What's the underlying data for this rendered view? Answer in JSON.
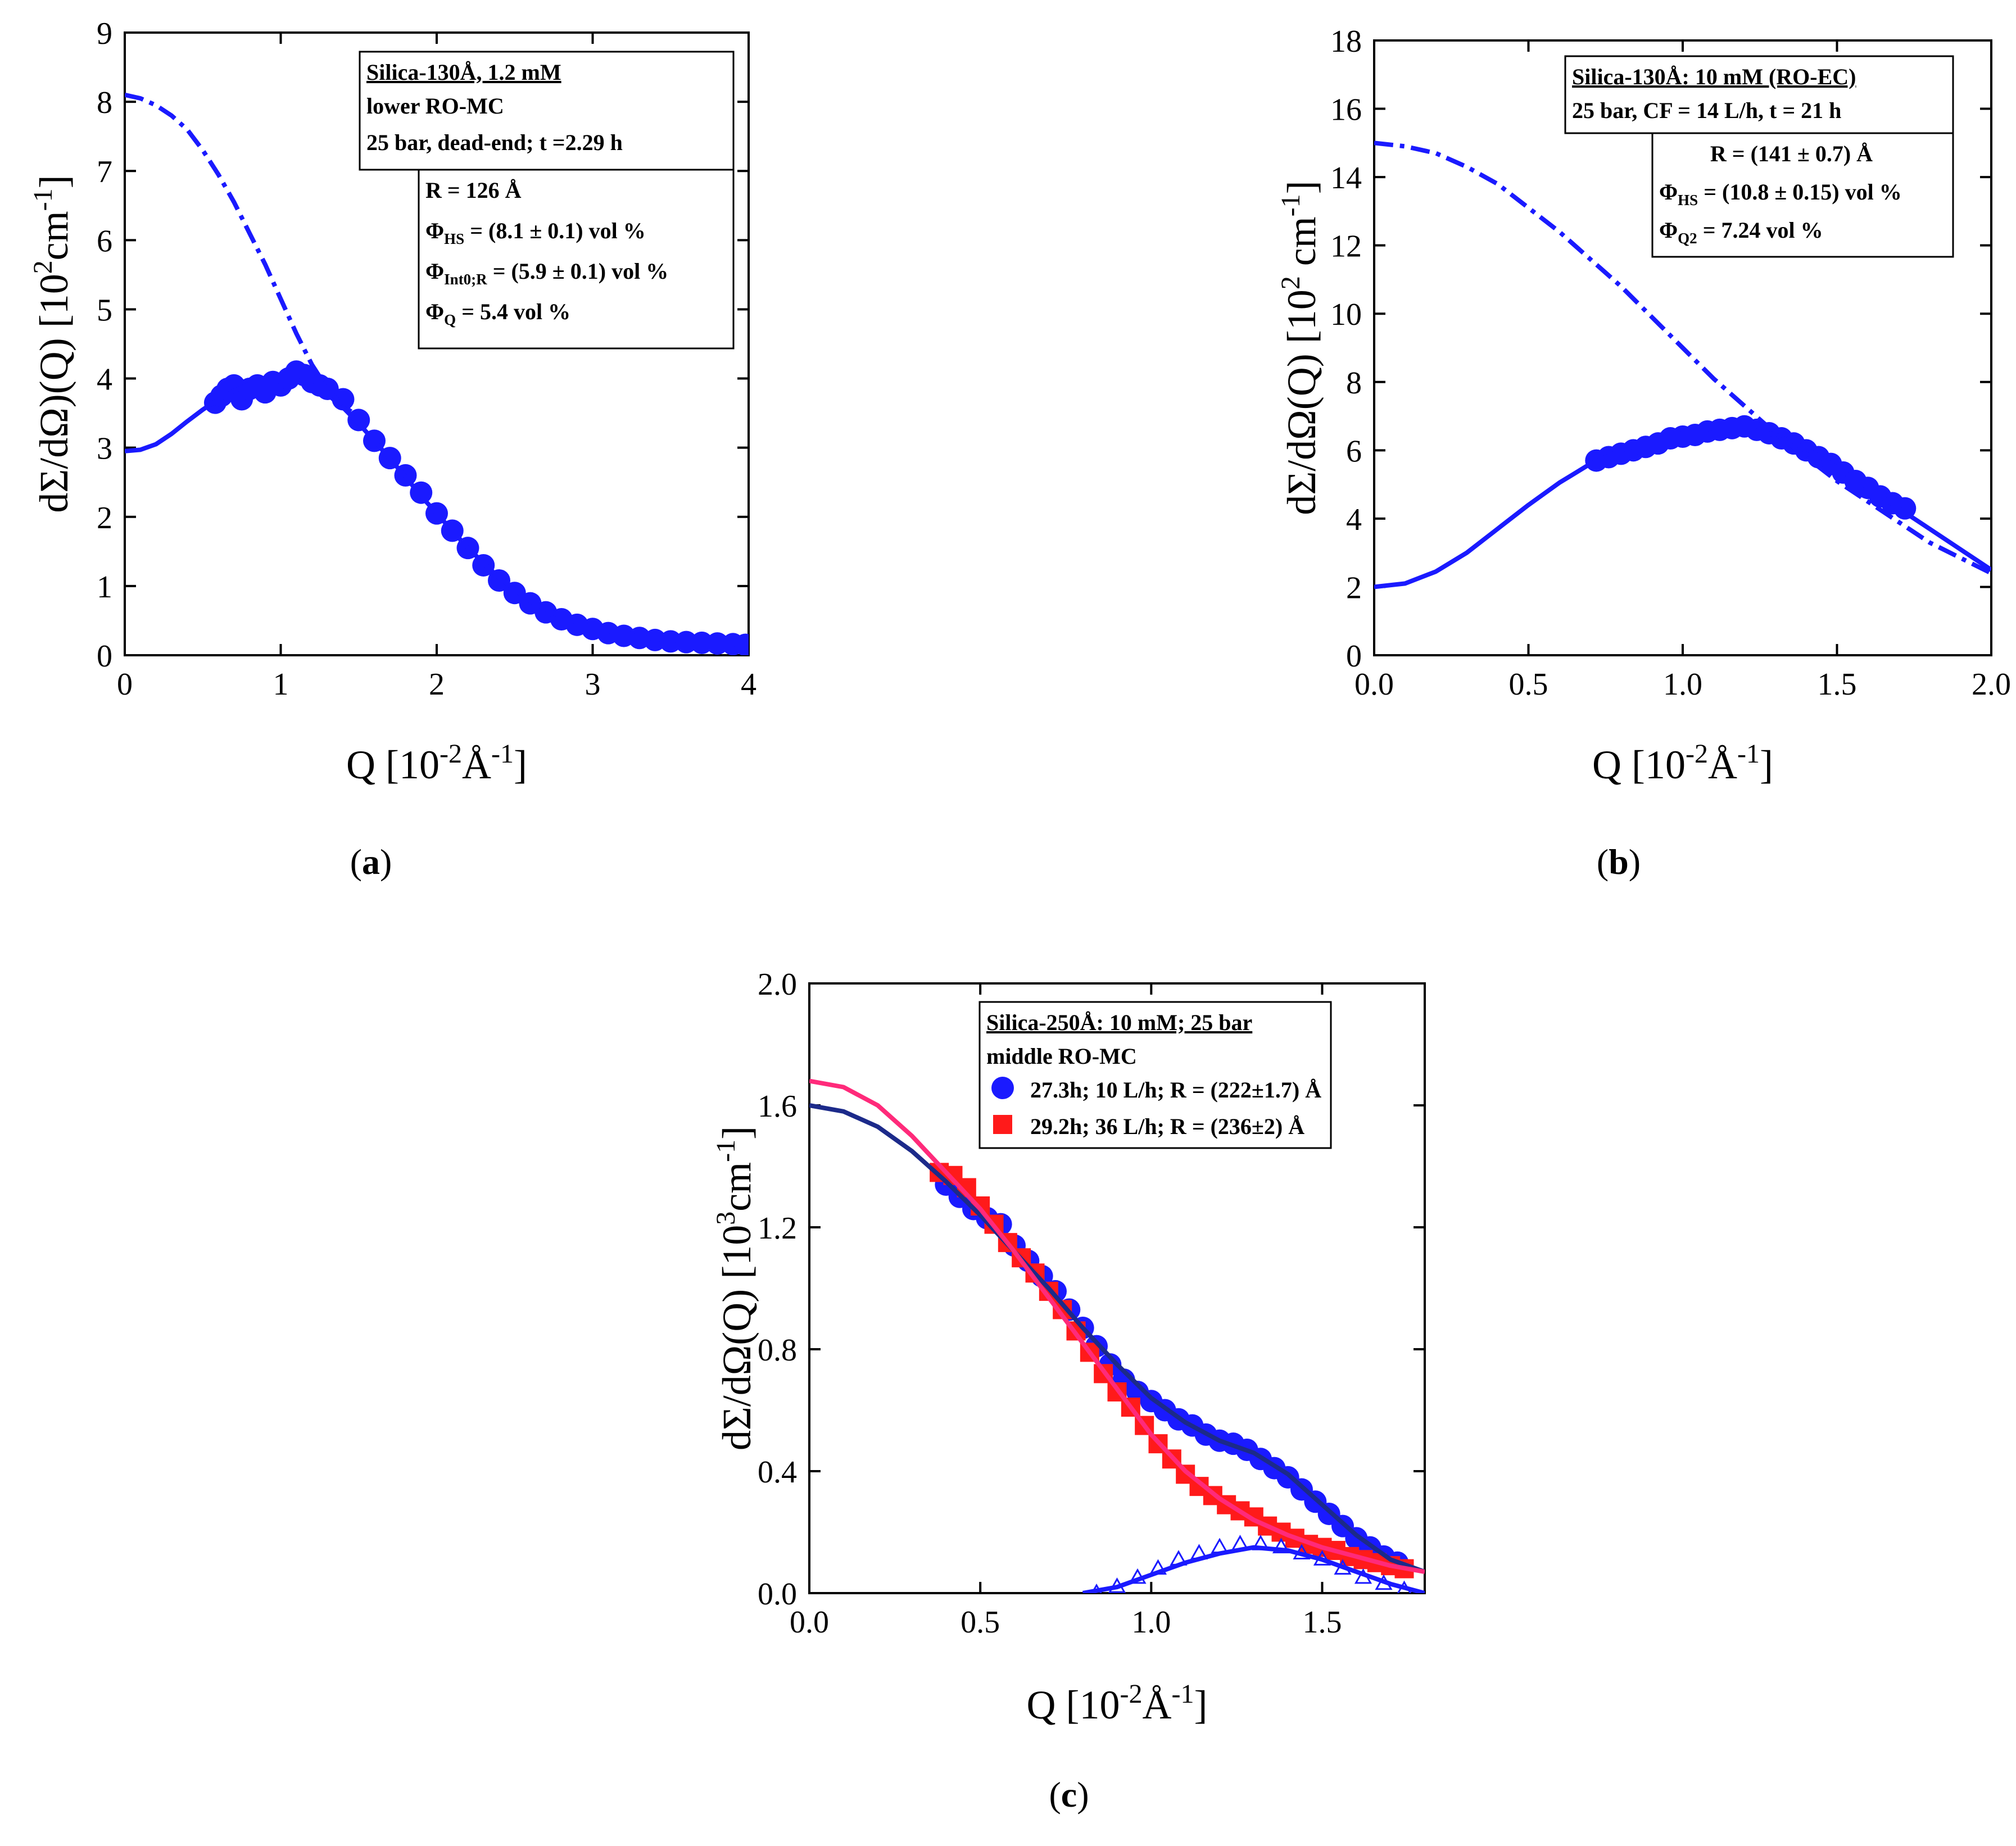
{
  "chart_data": [
    {
      "panel_label": "a",
      "type": "scatter",
      "xlabel": "Q [10",
      "xlabel_exp": "-2",
      "xlabel_unit": "Å",
      "xlabel_unit_exp": "-1",
      "xlabel_end": "]",
      "ylabel": "dΣ/dΩ)(Q) [10",
      "ylabel_exp": "2",
      "ylabel_unit": "cm",
      "ylabel_unit_exp": "-1",
      "ylabel_end": "]",
      "xlim": [
        0,
        4
      ],
      "ylim": [
        0,
        9
      ],
      "xticks": [
        "0",
        "1",
        "2",
        "3",
        "4"
      ],
      "yticks": [
        "0",
        "1",
        "2",
        "3",
        "4",
        "5",
        "6",
        "7",
        "8",
        "9"
      ],
      "color": "#1a1aff",
      "annotation_title": "Silica-130Å, 1.2 mM",
      "annotation_lines": [
        "lower RO-MC",
        "25 bar, dead-end; t =2.29 h"
      ],
      "param_lines": [
        {
          "sym": "R = 126 Å",
          "sub": "",
          "rest": ""
        },
        {
          "sym": "Φ",
          "sub": "HS",
          "rest": " = (8.1 ± 0.1) vol %"
        },
        {
          "sym": "Φ",
          "sub": "Int0;R",
          "rest": " = (5.9 ± 0.1) vol %"
        },
        {
          "sym": "Φ",
          "sub": "Q",
          "rest": " = 5.4 vol %"
        }
      ],
      "series": [
        {
          "name": "data",
          "kind": "points",
          "x": [
            0.58,
            0.62,
            0.66,
            0.7,
            0.75,
            0.8,
            0.85,
            0.9,
            0.95,
            1.0,
            1.05,
            1.1,
            1.15,
            1.2,
            1.25,
            1.3,
            1.4,
            1.5,
            1.6,
            1.7,
            1.8,
            1.9,
            2.0,
            2.1,
            2.2,
            2.3,
            2.4,
            2.5,
            2.6,
            2.7,
            2.8,
            2.9,
            3.0,
            3.1,
            3.2,
            3.3,
            3.4,
            3.5,
            3.6,
            3.7,
            3.8,
            3.9,
            3.98
          ],
          "y": [
            3.65,
            3.75,
            3.85,
            3.9,
            3.7,
            3.85,
            3.9,
            3.8,
            3.95,
            3.9,
            4.0,
            4.1,
            4.05,
            3.95,
            3.9,
            3.85,
            3.7,
            3.4,
            3.1,
            2.85,
            2.6,
            2.35,
            2.05,
            1.8,
            1.55,
            1.3,
            1.08,
            0.9,
            0.75,
            0.62,
            0.52,
            0.44,
            0.38,
            0.32,
            0.28,
            0.25,
            0.22,
            0.2,
            0.19,
            0.18,
            0.17,
            0.16,
            0.15
          ]
        },
        {
          "name": "fit",
          "kind": "line",
          "x": [
            0,
            0.1,
            0.2,
            0.3,
            0.4,
            0.5,
            0.6,
            0.7,
            0.8,
            0.9,
            1.0,
            1.1,
            1.2,
            1.3,
            1.4,
            1.5,
            1.6,
            1.7,
            1.8,
            1.9,
            2.0,
            2.2,
            2.4,
            2.6,
            2.8,
            3.0,
            3.2,
            3.4,
            3.6,
            3.8,
            4.0
          ],
          "y": [
            2.95,
            2.97,
            3.05,
            3.2,
            3.38,
            3.55,
            3.7,
            3.82,
            3.92,
            3.98,
            4.0,
            3.98,
            3.9,
            3.77,
            3.58,
            3.35,
            3.1,
            2.84,
            2.58,
            2.3,
            2.05,
            1.55,
            1.12,
            0.78,
            0.55,
            0.4,
            0.3,
            0.24,
            0.2,
            0.17,
            0.15
          ]
        },
        {
          "name": "form factor",
          "kind": "dashdot",
          "x": [
            0,
            0.1,
            0.2,
            0.3,
            0.4,
            0.5,
            0.6,
            0.7,
            0.8,
            0.9,
            1.0,
            1.1,
            1.2,
            1.3,
            1.4,
            1.5,
            1.55
          ],
          "y": [
            8.1,
            8.05,
            7.95,
            7.8,
            7.6,
            7.3,
            6.95,
            6.55,
            6.1,
            5.65,
            5.15,
            4.65,
            4.2,
            3.85,
            3.6,
            3.45,
            3.4
          ]
        }
      ]
    },
    {
      "panel_label": "b",
      "type": "scatter",
      "xlabel": "Q [10",
      "xlabel_exp": "-2",
      "xlabel_unit": "Å",
      "xlabel_unit_exp": "-1",
      "xlabel_end": "]",
      "ylabel": "dΣ/dΩ(Q) [10",
      "ylabel_exp": "2",
      "ylabel_unit": " cm",
      "ylabel_unit_exp": "-1",
      "ylabel_end": "]",
      "xlim": [
        0,
        2.0
      ],
      "ylim": [
        0,
        18
      ],
      "xticks": [
        "0.0",
        "0.5",
        "1.0",
        "1.5",
        "2.0"
      ],
      "yticks": [
        "0",
        "2",
        "4",
        "6",
        "8",
        "10",
        "12",
        "14",
        "16",
        "18"
      ],
      "color": "#1a1aff",
      "annotation_title": "Silica-130Å: 10 mM (RO-EC)",
      "annotation_lines": [
        "25 bar, CF = 14 L/h, t = 21 h"
      ],
      "param_lines": [
        {
          "sym": "R = (141 ± 0.7) Å",
          "sub": "",
          "rest": ""
        },
        {
          "sym": "Φ",
          "sub": "HS",
          "rest": " = (10.8 ± 0.15) vol %"
        },
        {
          "sym": "Φ",
          "sub": "Q2",
          "rest": " = 7.24 vol %"
        }
      ],
      "series": [
        {
          "name": "data",
          "kind": "points",
          "x": [
            0.72,
            0.76,
            0.8,
            0.84,
            0.88,
            0.92,
            0.96,
            1.0,
            1.04,
            1.08,
            1.12,
            1.16,
            1.2,
            1.24,
            1.28,
            1.32,
            1.36,
            1.4,
            1.44,
            1.48,
            1.52,
            1.56,
            1.6,
            1.64,
            1.68,
            1.72
          ],
          "y": [
            5.7,
            5.8,
            5.9,
            6.0,
            6.1,
            6.2,
            6.35,
            6.4,
            6.45,
            6.55,
            6.6,
            6.65,
            6.7,
            6.6,
            6.5,
            6.35,
            6.2,
            6.0,
            5.8,
            5.6,
            5.35,
            5.1,
            4.9,
            4.65,
            4.45,
            4.3
          ]
        },
        {
          "name": "fit",
          "kind": "line",
          "x": [
            0,
            0.1,
            0.2,
            0.3,
            0.4,
            0.5,
            0.6,
            0.7,
            0.8,
            0.9,
            1.0,
            1.1,
            1.2,
            1.3,
            1.4,
            1.5,
            1.6,
            1.7,
            1.8,
            1.9,
            2.0
          ],
          "y": [
            2.0,
            2.1,
            2.45,
            3.0,
            3.7,
            4.4,
            5.05,
            5.6,
            6.0,
            6.3,
            6.5,
            6.65,
            6.65,
            6.45,
            6.05,
            5.5,
            4.9,
            4.3,
            3.7,
            3.1,
            2.5
          ]
        },
        {
          "name": "form factor",
          "kind": "dashdot",
          "x": [
            0,
            0.1,
            0.2,
            0.3,
            0.4,
            0.5,
            0.6,
            0.7,
            0.8,
            0.9,
            1.0,
            1.1,
            1.2,
            1.3,
            1.4,
            1.5,
            1.6,
            1.7,
            1.8,
            1.9,
            2.0
          ],
          "y": [
            15.0,
            14.9,
            14.7,
            14.3,
            13.8,
            13.1,
            12.4,
            11.6,
            10.8,
            9.9,
            9.0,
            8.1,
            7.3,
            6.5,
            5.8,
            5.1,
            4.5,
            3.9,
            3.3,
            2.85,
            2.4
          ]
        }
      ]
    },
    {
      "panel_label": "c",
      "type": "scatter",
      "xlabel": "Q [10",
      "xlabel_exp": "-2",
      "xlabel_unit": "Å",
      "xlabel_unit_exp": "-1",
      "xlabel_end": "]",
      "ylabel": "dΣ/dΩ(Q) [10",
      "ylabel_exp": "3",
      "ylabel_unit": "cm",
      "ylabel_unit_exp": "-1",
      "ylabel_end": "]",
      "xlim": [
        0,
        1.8
      ],
      "ylim": [
        0,
        2.0
      ],
      "xticks": [
        "0.0",
        "0.5",
        "1.0",
        "1.5"
      ],
      "yticks": [
        "0.0",
        "0.4",
        "0.8",
        "1.2",
        "1.6",
        "2.0"
      ],
      "annotation_title": "Silica-250Å: 10 mM; 25 bar",
      "annotation_lines": [
        "middle RO-MC"
      ],
      "legend": [
        {
          "label": "27.3h; 10 L/h; R = (222±1.7) Å",
          "marker": "circle",
          "color": "#1a1aff"
        },
        {
          "label": "29.2h; 36 L/h; R = (236±2) Å",
          "marker": "square",
          "color": "#ff1a1a"
        }
      ],
      "series": [
        {
          "name": "27.3h; 10 L/h",
          "kind": "points",
          "marker": "circle",
          "color": "#1a1aff",
          "x": [
            0.4,
            0.44,
            0.48,
            0.52,
            0.56,
            0.6,
            0.64,
            0.68,
            0.72,
            0.76,
            0.8,
            0.84,
            0.88,
            0.92,
            0.96,
            1.0,
            1.04,
            1.08,
            1.12,
            1.16,
            1.2,
            1.24,
            1.28,
            1.32,
            1.36,
            1.4,
            1.44,
            1.48,
            1.52,
            1.56,
            1.6,
            1.64,
            1.68,
            1.72
          ],
          "y": [
            1.34,
            1.3,
            1.26,
            1.23,
            1.21,
            1.14,
            1.09,
            1.04,
            0.99,
            0.93,
            0.87,
            0.81,
            0.75,
            0.7,
            0.66,
            0.63,
            0.6,
            0.57,
            0.55,
            0.52,
            0.5,
            0.49,
            0.47,
            0.44,
            0.41,
            0.38,
            0.34,
            0.3,
            0.26,
            0.22,
            0.18,
            0.15,
            0.12,
            0.1
          ]
        },
        {
          "name": "29.2h; 36 L/h",
          "kind": "points",
          "marker": "square",
          "color": "#ff1a1a",
          "x": [
            0.38,
            0.42,
            0.46,
            0.5,
            0.54,
            0.58,
            0.62,
            0.66,
            0.7,
            0.74,
            0.78,
            0.82,
            0.86,
            0.9,
            0.94,
            0.98,
            1.02,
            1.06,
            1.1,
            1.14,
            1.18,
            1.22,
            1.26,
            1.3,
            1.34,
            1.38,
            1.42,
            1.46,
            1.5,
            1.54,
            1.58,
            1.62,
            1.66,
            1.7,
            1.74
          ],
          "y": [
            1.38,
            1.37,
            1.33,
            1.27,
            1.21,
            1.15,
            1.1,
            1.05,
            0.99,
            0.93,
            0.86,
            0.79,
            0.72,
            0.66,
            0.61,
            0.55,
            0.49,
            0.44,
            0.39,
            0.35,
            0.32,
            0.29,
            0.27,
            0.25,
            0.22,
            0.2,
            0.18,
            0.16,
            0.15,
            0.14,
            0.12,
            0.11,
            0.1,
            0.09,
            0.08
          ]
        },
        {
          "name": "fit 27.3h",
          "kind": "line",
          "color": "#1c2a8a",
          "x": [
            0,
            0.1,
            0.2,
            0.3,
            0.4,
            0.5,
            0.6,
            0.7,
            0.8,
            0.9,
            1.0,
            1.1,
            1.2,
            1.3,
            1.4,
            1.5,
            1.6,
            1.7,
            1.8
          ],
          "y": [
            1.6,
            1.58,
            1.53,
            1.45,
            1.35,
            1.24,
            1.12,
            1.0,
            0.87,
            0.75,
            0.64,
            0.56,
            0.5,
            0.46,
            0.39,
            0.29,
            0.19,
            0.11,
            0.07
          ]
        },
        {
          "name": "fit 29.2h",
          "kind": "line",
          "color": "#ff2a7a",
          "x": [
            0,
            0.1,
            0.2,
            0.3,
            0.4,
            0.5,
            0.6,
            0.7,
            0.8,
            0.9,
            1.0,
            1.1,
            1.2,
            1.3,
            1.4,
            1.5,
            1.6,
            1.7,
            1.8
          ],
          "y": [
            1.68,
            1.66,
            1.6,
            1.5,
            1.38,
            1.26,
            1.12,
            0.97,
            0.82,
            0.67,
            0.52,
            0.4,
            0.31,
            0.24,
            0.19,
            0.15,
            0.12,
            0.09,
            0.07
          ]
        },
        {
          "name": "structure contribution",
          "kind": "triangles",
          "color": "#1a1aff",
          "x": [
            0.84,
            0.9,
            0.96,
            1.02,
            1.08,
            1.14,
            1.2,
            1.26,
            1.32,
            1.38,
            1.44,
            1.5,
            1.56,
            1.62,
            1.68,
            1.74
          ],
          "y": [
            0.0,
            0.02,
            0.05,
            0.08,
            0.11,
            0.13,
            0.15,
            0.16,
            0.16,
            0.15,
            0.13,
            0.11,
            0.08,
            0.05,
            0.03,
            0.01
          ]
        },
        {
          "name": "structure curve",
          "kind": "line",
          "color": "#1a1aff",
          "x": [
            0.8,
            0.9,
            1.0,
            1.1,
            1.2,
            1.3,
            1.4,
            1.5,
            1.6,
            1.7,
            1.8
          ],
          "y": [
            0.0,
            0.02,
            0.06,
            0.1,
            0.13,
            0.15,
            0.14,
            0.11,
            0.07,
            0.03,
            0.0
          ]
        }
      ]
    }
  ]
}
